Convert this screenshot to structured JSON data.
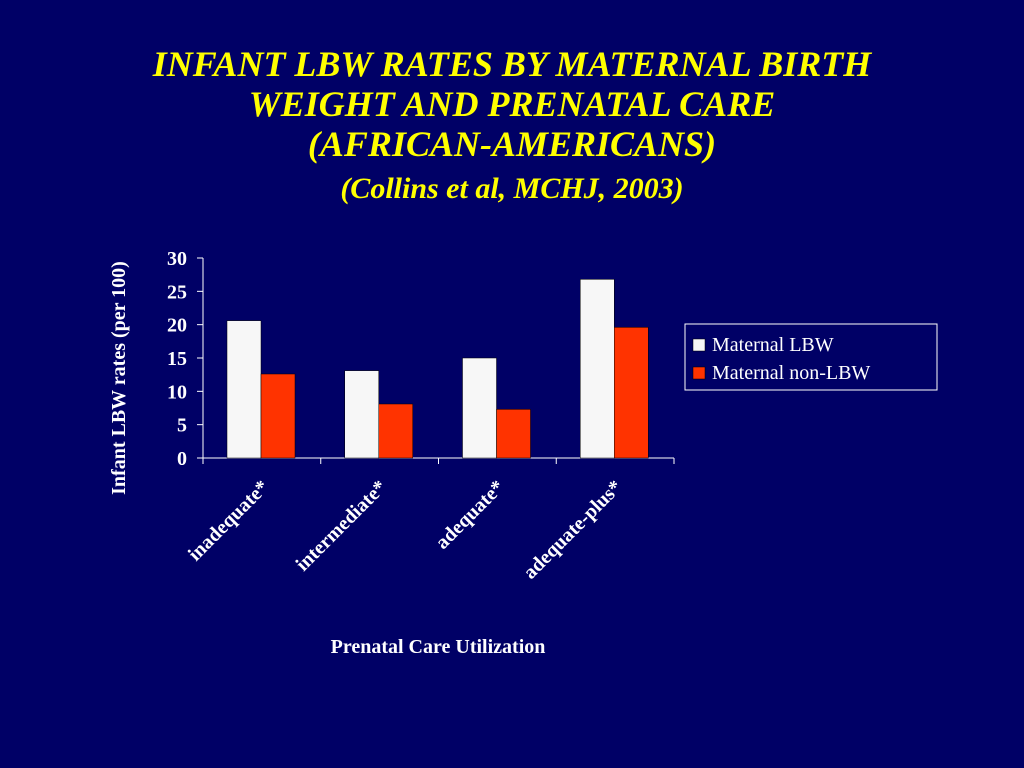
{
  "slide": {
    "background_color": "#000066",
    "title_color": "#ffff00",
    "title_lines": [
      "INFANT LBW RATES BY MATERNAL BIRTH",
      "WEIGHT AND PRENATAL CARE",
      "(AFRICAN-AMERICANS)"
    ],
    "citation": "(Collins et al, MCHJ, 2003)"
  },
  "chart_data": {
    "type": "bar",
    "title": "",
    "xlabel": "Prenatal Care Utilization",
    "ylabel": "Infant LBW rates (per 100)",
    "categories": [
      "inadequate*",
      "intermediate*",
      "adequate*",
      "adequate-plus*"
    ],
    "series": [
      {
        "name": "Maternal LBW",
        "color": "#f7f7f7",
        "values": [
          20.6,
          13.1,
          15.0,
          26.8
        ]
      },
      {
        "name": "Maternal non-LBW",
        "color": "#ff3300",
        "values": [
          12.6,
          8.1,
          7.3,
          19.6
        ]
      }
    ],
    "ylim": [
      0,
      30
    ],
    "yticks": [
      0,
      5,
      10,
      15,
      20,
      25,
      30
    ],
    "grid": false,
    "legend_position": "right",
    "text_color": "#ffffff"
  }
}
